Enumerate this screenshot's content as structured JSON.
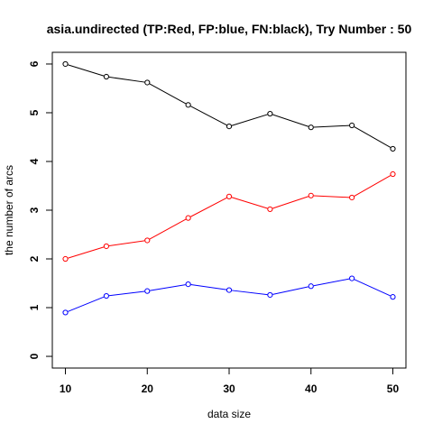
{
  "chart_data": {
    "type": "line",
    "title": "asia.undirected  (TP:Red, FP:blue, FN:black),  Try Number :  50",
    "xlabel": "data size",
    "ylabel": "the number of arcs",
    "x": [
      10,
      15,
      20,
      25,
      30,
      35,
      40,
      45,
      50
    ],
    "x_ticks": [
      10,
      20,
      30,
      40,
      50
    ],
    "y_ticks": [
      0,
      1,
      2,
      3,
      4,
      5,
      6
    ],
    "xlim": [
      8.4,
      51.6
    ],
    "ylim": [
      -0.24,
      6.24
    ],
    "grid": false,
    "series": [
      {
        "color": "#000000",
        "values": [
          6.0,
          5.74,
          5.62,
          5.16,
          4.72,
          4.98,
          4.7,
          4.74,
          4.26
        ]
      },
      {
        "color": "#ff0000",
        "values": [
          2.0,
          2.26,
          2.38,
          2.84,
          3.28,
          3.02,
          3.3,
          3.26,
          3.74
        ]
      },
      {
        "color": "#0000ff",
        "values": [
          0.9,
          1.24,
          1.34,
          1.48,
          1.36,
          1.26,
          1.44,
          1.6,
          1.22
        ]
      }
    ]
  }
}
